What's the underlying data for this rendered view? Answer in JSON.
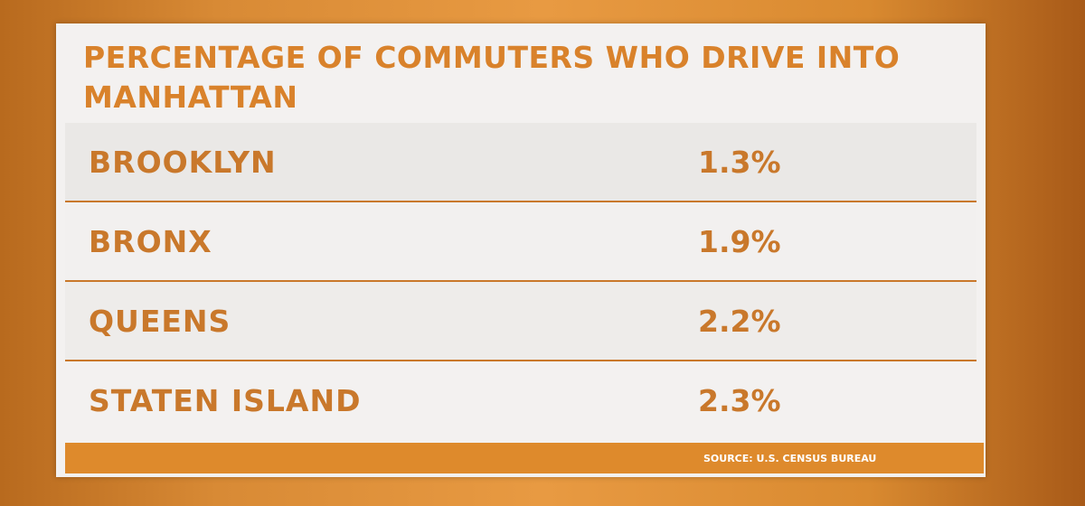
{
  "title": "PERCENTAGE OF COMMUTERS WHO DRIVE INTO MANHATTAN",
  "table": {
    "rows": [
      [
        "BROOKLYN",
        "1.3%"
      ],
      [
        "BRONX",
        "1.9%"
      ],
      [
        "QUEENS",
        "2.2%"
      ],
      [
        "STATEN ISLAND",
        "2.3%"
      ]
    ]
  },
  "source": "SOURCE: U.S. CENSUS BUREAU"
}
